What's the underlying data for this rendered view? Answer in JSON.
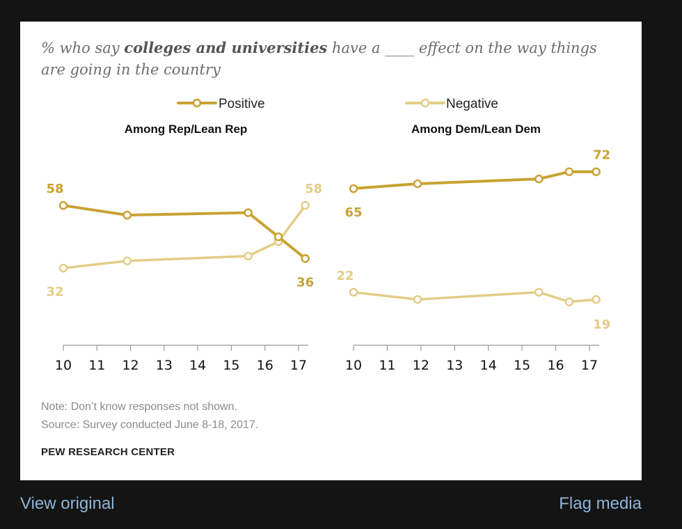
{
  "title": {
    "prefix": "% who say ",
    "bold": "colleges and universities",
    "suffix": " have a ____ effect on the way things are going in the country"
  },
  "legend": {
    "positive": "Positive",
    "negative": "Negative"
  },
  "colors": {
    "positive": "#c8a232",
    "negative": "#e3cc86"
  },
  "note": "Note: Don’t know responses not shown.",
  "source": "Source: Survey conducted June 8-18, 2017.",
  "brand": "PEW RESEARCH CENTER",
  "links": {
    "view_original": "View original",
    "flag_media": "Flag media"
  },
  "chart_data": [
    {
      "type": "line",
      "title": "Among Rep/Lean Rep",
      "x_ticks": [
        "10",
        "11",
        "12",
        "13",
        "14",
        "15",
        "16",
        "17"
      ],
      "series": [
        {
          "name": "Positive",
          "x": [
            2010.0,
            2011.9,
            2015.5,
            2016.4,
            2017.2
          ],
          "values": [
            58,
            54,
            55,
            45,
            36
          ],
          "labels": [
            {
              "text": "58",
              "index": 0
            },
            {
              "text": "36",
              "index": 4
            }
          ]
        },
        {
          "name": "Negative",
          "x": [
            2010.0,
            2011.9,
            2015.5,
            2016.4,
            2017.2
          ],
          "values": [
            32,
            35,
            37,
            43,
            58
          ],
          "labels": [
            {
              "text": "32",
              "index": 0
            },
            {
              "text": "58",
              "index": 4
            }
          ]
        }
      ],
      "ylim": [
        0,
        80
      ]
    },
    {
      "type": "line",
      "title": "Among Dem/Lean Dem",
      "x_ticks": [
        "10",
        "11",
        "12",
        "13",
        "14",
        "15",
        "16",
        "17"
      ],
      "series": [
        {
          "name": "Positive",
          "x": [
            2010.0,
            2011.9,
            2015.5,
            2016.4,
            2017.2
          ],
          "values": [
            65,
            67,
            69,
            72,
            72
          ],
          "labels": [
            {
              "text": "65",
              "index": 0
            },
            {
              "text": "72",
              "index": 4
            }
          ]
        },
        {
          "name": "Negative",
          "x": [
            2010.0,
            2011.9,
            2015.5,
            2016.4,
            2017.2
          ],
          "values": [
            22,
            19,
            22,
            18,
            19
          ],
          "labels": [
            {
              "text": "22",
              "index": 0
            },
            {
              "text": "19",
              "index": 4
            }
          ]
        }
      ],
      "ylim": [
        0,
        80
      ]
    }
  ]
}
